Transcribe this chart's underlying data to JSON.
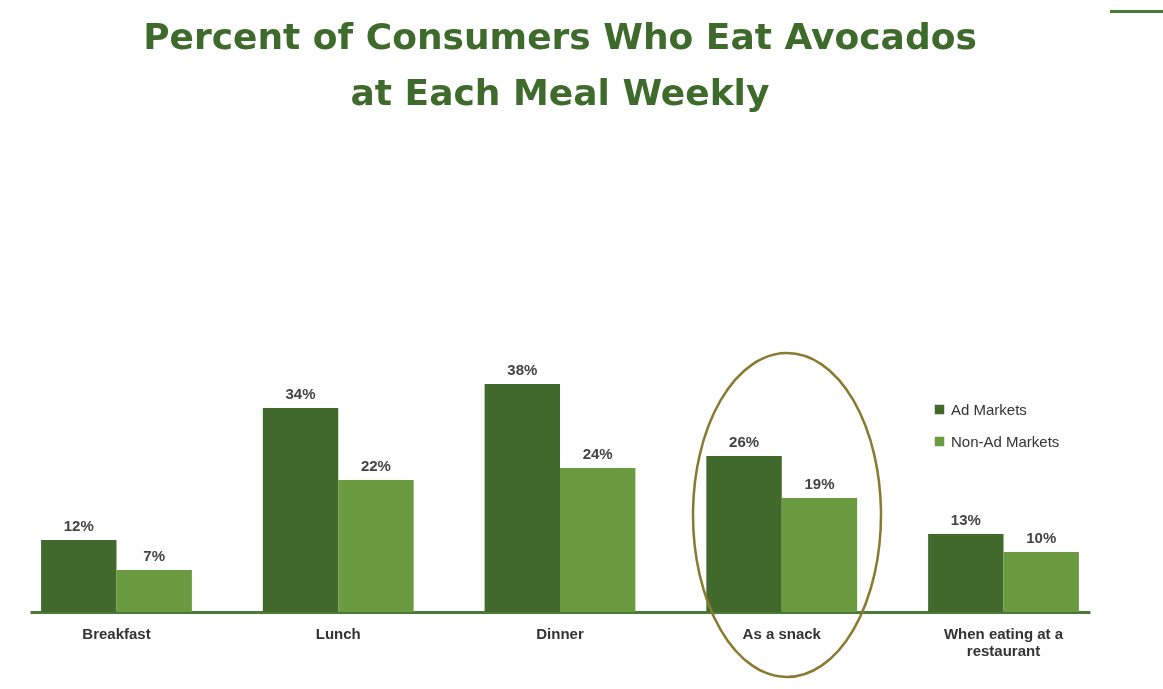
{
  "chart_data": {
    "type": "bar",
    "title": "Percent of Consumers Who Eat Avocados at Each Meal Weekly",
    "categories": [
      "Breakfast",
      "Lunch",
      "Dinner",
      "As a snack",
      "When eating at a restaurant"
    ],
    "series": [
      {
        "name": "Ad Markets",
        "color": "#41692c",
        "values": [
          12,
          34,
          38,
          26,
          13
        ],
        "value_labels": [
          "12%",
          "34%",
          "38%",
          "26%",
          "13%"
        ]
      },
      {
        "name": "Non-Ad Markets",
        "color": "#6b9b40",
        "values": [
          7,
          22,
          24,
          19,
          10
        ],
        "value_labels": [
          "7%",
          "22%",
          "24%",
          "19%",
          "10%"
        ]
      }
    ],
    "legend": "top right",
    "grid": false
  }
}
